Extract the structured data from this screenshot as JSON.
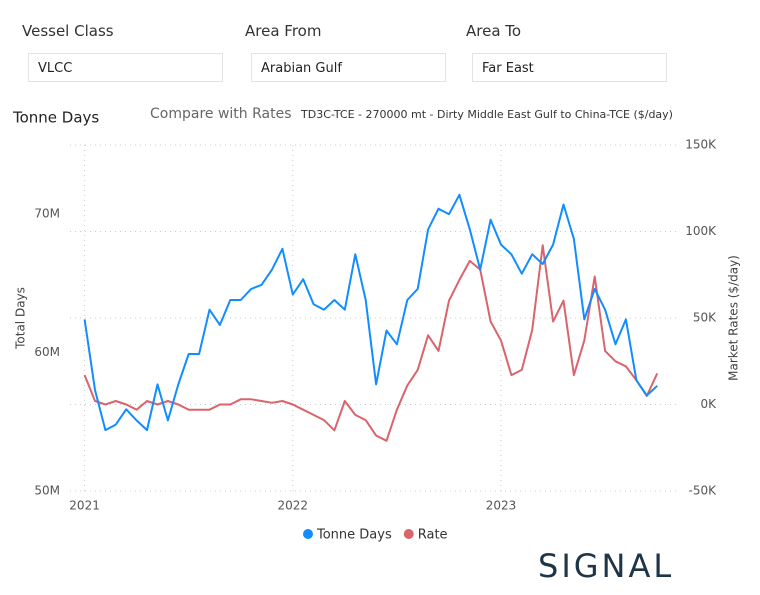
{
  "filters": [
    {
      "label": "Vessel Class",
      "value": "VLCC"
    },
    {
      "label": "Area From",
      "value": "Arabian Gulf"
    },
    {
      "label": "Area To",
      "value": "Far East"
    }
  ],
  "brand": "SIGNAL",
  "chart_data": {
    "type": "line",
    "title": "Tonne Days",
    "toggle": "Compare with Rates",
    "subtitle": "TD3C-TCE - 270000 mt - Dirty Middle East Gulf to China-TCE ($/day)",
    "ylabel": "Total Days",
    "y2label": "Market Rates ($/day)",
    "x": [
      2021.0,
      2021.05,
      2021.1,
      2021.15,
      2021.2,
      2021.25,
      2021.3,
      2021.35,
      2021.4,
      2021.45,
      2021.5,
      2021.55,
      2021.6,
      2021.65,
      2021.7,
      2021.75,
      2021.8,
      2021.85,
      2021.9,
      2021.95,
      2022.0,
      2022.05,
      2022.1,
      2022.15,
      2022.2,
      2022.25,
      2022.3,
      2022.35,
      2022.4,
      2022.45,
      2022.5,
      2022.55,
      2022.6,
      2022.65,
      2022.7,
      2022.75,
      2022.8,
      2022.85,
      2022.9,
      2022.95,
      2023.0,
      2023.05,
      2023.1,
      2023.15,
      2023.2,
      2023.25,
      2023.3,
      2023.35,
      2023.4,
      2023.45,
      2023.5,
      2023.55,
      2023.6,
      2023.65,
      2023.7,
      2023.75
    ],
    "xlim": [
      2020.93,
      2023.85
    ],
    "xticks": [
      2021,
      2022,
      2023
    ],
    "ylim": [
      50000000,
      75000000
    ],
    "yticks": [
      {
        "value": 50000000,
        "label": "50M"
      },
      {
        "value": 60000000,
        "label": "60M"
      },
      {
        "value": 70000000,
        "label": "70M"
      }
    ],
    "y2lim": [
      -50000,
      150000
    ],
    "y2ticks": [
      {
        "value": -50000,
        "label": "-50K"
      },
      {
        "value": 0,
        "label": "0K"
      },
      {
        "value": 50000,
        "label": "50K"
      },
      {
        "value": 100000,
        "label": "100K"
      },
      {
        "value": 150000,
        "label": "150K"
      }
    ],
    "grid": true,
    "legend": "bottom",
    "series": [
      {
        "name": "Tonne Days",
        "color": "#118dff",
        "values": [
          62400000,
          57300000,
          54400000,
          54800000,
          55900000,
          55100000,
          54400000,
          57700000,
          55100000,
          57700000,
          59900000,
          59900000,
          63100000,
          62000000,
          63800000,
          63800000,
          64600000,
          64900000,
          66000000,
          67500000,
          64200000,
          65300000,
          63500000,
          63100000,
          63800000,
          63100000,
          67100000,
          63800000,
          57700000,
          61600000,
          60600000,
          63800000,
          64600000,
          68900000,
          70400000,
          70000000,
          71400000,
          68900000,
          66000000,
          69600000,
          67800000,
          67100000,
          65700000,
          67100000,
          66400000,
          67800000,
          70700000,
          68200000,
          62400000,
          64600000,
          63100000,
          60600000,
          62400000,
          58000000,
          56900000,
          57600000
        ]
      },
      {
        "name": "Rate",
        "color": "#d9646c",
        "axis": "y2",
        "values": [
          17000,
          2000,
          0,
          2000,
          0,
          -3000,
          2000,
          0,
          2000,
          0,
          -3000,
          -3000,
          -3000,
          0,
          0,
          3000,
          3000,
          2000,
          1000,
          2000,
          0,
          -3000,
          -6000,
          -9000,
          -15000,
          2000,
          -6000,
          -9000,
          -18000,
          -21000,
          -3000,
          11000,
          20000,
          40000,
          31000,
          60000,
          72000,
          83000,
          78000,
          48000,
          37000,
          17000,
          20000,
          43000,
          92000,
          48000,
          60000,
          17000,
          37000,
          74000,
          31000,
          25000,
          22000,
          14000,
          5000,
          18000
        ]
      }
    ]
  }
}
